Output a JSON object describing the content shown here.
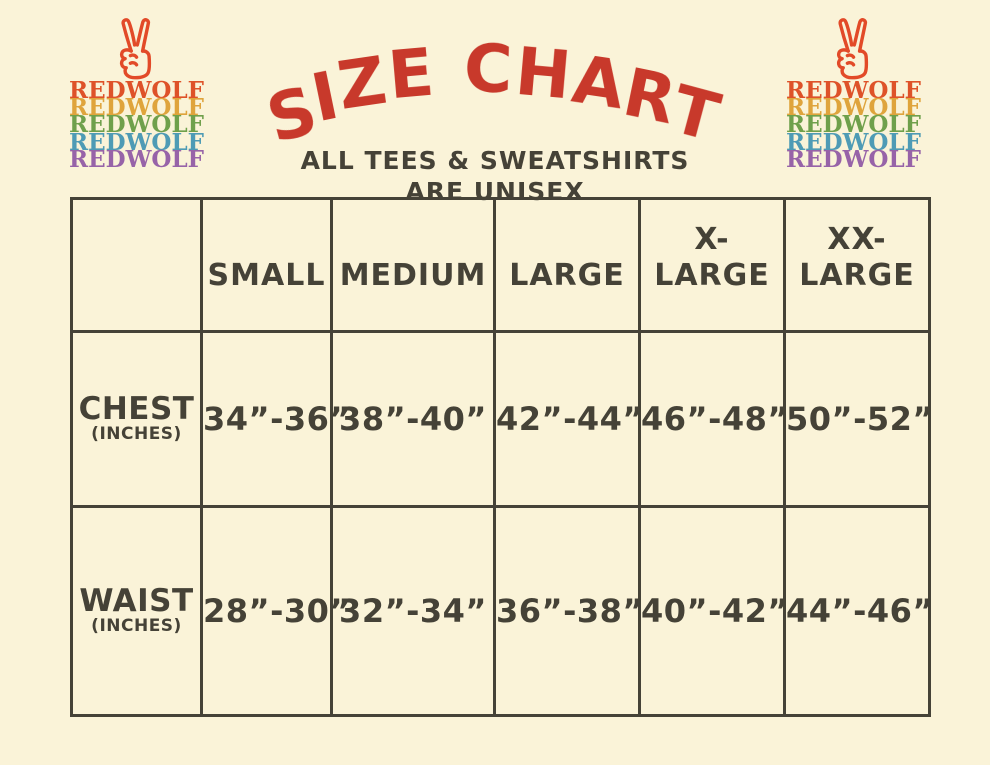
{
  "page": {
    "background": "#FAF3D8",
    "text_color": "#454237",
    "accent_red": "#C8392B"
  },
  "logo": {
    "word": "REDWOLF",
    "lines": [
      {
        "text": "REDWOLF",
        "color": "#DE5229"
      },
      {
        "text": "REDWOLF",
        "color": "#DFA43C"
      },
      {
        "text": "REDWOLF",
        "color": "#6FA04B"
      },
      {
        "text": "REDWOLF",
        "color": "#4E9BB5"
      },
      {
        "text": "REDWOLF",
        "color": "#9763A8"
      }
    ],
    "peace_icon": "peace-hand-icon",
    "peace_icon_color": "#E24A28"
  },
  "header": {
    "title": "SIZE CHART",
    "subtitle_line1": "ALL TEES & SWEATSHIRTS",
    "subtitle_line2": "ARE UNISEX"
  },
  "chart_data": {
    "type": "table",
    "title": "SIZE CHART",
    "subtitle": "ALL TEES & SWEATSHIRTS ARE UNISEX",
    "columns": [
      "",
      "SMALL",
      "MEDIUM",
      "LARGE",
      "X-LARGE",
      "XX-LARGE"
    ],
    "rows": [
      {
        "label": "CHEST",
        "unit": "(INCHES)",
        "values": [
          "34”-36”",
          "38”-40”",
          "42”-44”",
          "46”-48”",
          "50”-52”"
        ]
      },
      {
        "label": "WAIST",
        "unit": "(INCHES)",
        "values": [
          "28”-30”",
          "32”-34”",
          "36”-38”",
          "40”-42”",
          "44”-46”"
        ]
      }
    ]
  }
}
